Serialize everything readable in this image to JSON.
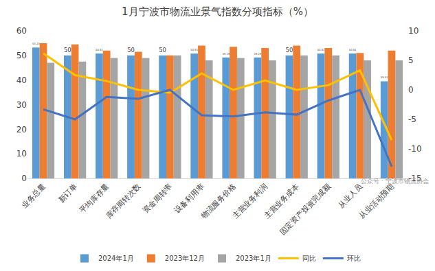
{
  "chart_data": {
    "type": "bar",
    "title": "1月宁波市物流业景气指数分项指标（%）",
    "annotations": [
      "公众号 · 宁波市物流协会"
    ],
    "categories": [
      "业务总量",
      "新订单",
      "平均库存量",
      "库存周转次数",
      "资金周转率",
      "设备利用率",
      "物流服务价格",
      "主营业务利润",
      "主营业务成本",
      "固定资产投资完成额",
      "从业人员",
      "从业活动预期"
    ],
    "series": [
      {
        "name": "2024年1月",
        "type": "bar",
        "color": "#5B9BD5",
        "data_labels": true,
        "values": [
          53.23,
          50,
          50.81,
          50,
          50,
          50.81,
          49.19,
          49.19,
          50,
          50.81,
          50.81,
          39.52
        ]
      },
      {
        "name": "2023年12月",
        "type": "bar",
        "color": "#ED7D31",
        "values": [
          55,
          54.5,
          52,
          51.5,
          50,
          54,
          53.5,
          53,
          54,
          53,
          51,
          52
        ]
      },
      {
        "name": "2023年1月",
        "type": "bar",
        "color": "#A5A5A5",
        "values": [
          47,
          47.5,
          49,
          49,
          50,
          48,
          49,
          48,
          50,
          50,
          48,
          48
        ]
      },
      {
        "name": "同比",
        "type": "line",
        "axis": "y2",
        "color": "#FFC000",
        "values": [
          6.2,
          2.5,
          1.5,
          0,
          -0.5,
          2.8,
          0,
          1.6,
          0,
          0.8,
          3.3,
          -8.5
        ]
      },
      {
        "name": "环比",
        "type": "line",
        "axis": "y2",
        "color": "#4472C4",
        "values": [
          -3.3,
          -5,
          -1.2,
          -1.5,
          0,
          -4.3,
          -4.5,
          -3.8,
          -4.2,
          -1.8,
          0,
          -13
        ]
      }
    ],
    "ylim": [
      0,
      60
    ],
    "yticks": [
      0,
      10,
      20,
      30,
      40,
      50,
      60
    ],
    "y2lim": [
      -15,
      10
    ],
    "y2ticks": [
      -15,
      -10,
      -5,
      0,
      5,
      10
    ],
    "grid": false,
    "legend": "bottom"
  }
}
